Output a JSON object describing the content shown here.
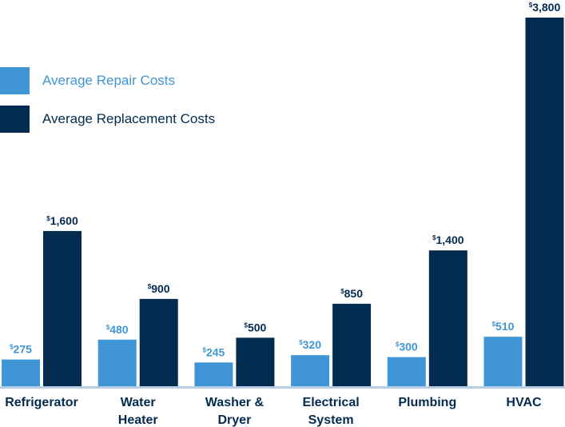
{
  "colors": {
    "repair": "#3f95d5",
    "replacement": "#032b50",
    "axis": "#b7cde3"
  },
  "legend": {
    "repair_label": "Average Repair Costs",
    "replacement_label": "Average Replacement Costs"
  },
  "chart_data": {
    "type": "bar",
    "title": "",
    "xlabel": "",
    "ylabel": "",
    "ylim": [
      0,
      3800
    ],
    "grid": false,
    "legend_position": "top-left",
    "categories": [
      [
        "Refrigerator"
      ],
      [
        "Water",
        "Heater"
      ],
      [
        "Washer &",
        "Dryer"
      ],
      [
        "Electrical",
        "System"
      ],
      [
        "Plumbing"
      ],
      [
        "HVAC"
      ]
    ],
    "series": [
      {
        "name": "Average Repair Costs",
        "values": [
          275,
          480,
          245,
          320,
          300,
          510
        ],
        "labels": [
          "275",
          "480",
          "245",
          "320",
          "300",
          "510"
        ]
      },
      {
        "name": "Average Replacement Costs",
        "values": [
          1600,
          900,
          500,
          850,
          1400,
          3800
        ],
        "labels": [
          "1,600",
          "900",
          "500",
          "850",
          "1,400",
          "3,800"
        ]
      }
    ],
    "currency_symbol": "$"
  }
}
